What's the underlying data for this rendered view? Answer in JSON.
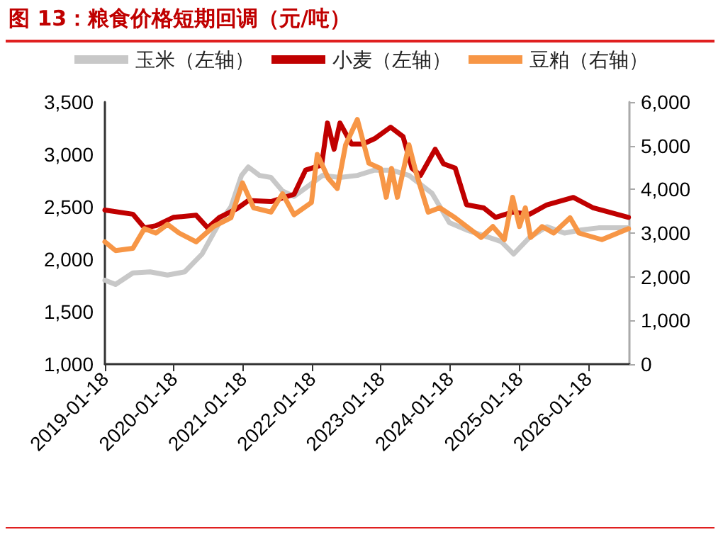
{
  "chart_data": {
    "type": "line",
    "title": "图 13：粮食价格短期回调（元/吨）",
    "xlim": [
      "2019-01-18",
      "2026-08-25"
    ],
    "xticks": [
      "2019-01-18",
      "2020-01-18",
      "2021-01-18",
      "2022-01-18",
      "2023-01-18",
      "2024-01-18",
      "2025-01-18",
      "2026-01-18"
    ],
    "ylim": [
      1000,
      3500
    ],
    "yticks": [
      {
        "value": 1000,
        "label": "1,000"
      },
      {
        "value": 1500,
        "label": "1,500"
      },
      {
        "value": 2000,
        "label": "2,000"
      },
      {
        "value": 2500,
        "label": "2,500"
      },
      {
        "value": 3000,
        "label": "3,000"
      },
      {
        "value": 3500,
        "label": "3,500"
      }
    ],
    "y2lim": [
      0,
      6000
    ],
    "y2ticks": [
      0,
      {
        "value": 1000,
        "label": "1,000"
      },
      {
        "value": 2000,
        "label": "2,000"
      },
      {
        "value": 3000,
        "label": "3,000"
      },
      {
        "value": 4000,
        "label": "4,000"
      },
      {
        "value": 5000,
        "label": "5,000"
      },
      {
        "value": 6000,
        "label": "6,000"
      }
    ],
    "grid": false,
    "legend": "top",
    "marker": "none",
    "line_style": "solid",
    "series": [
      {
        "name": "玉米（左轴）",
        "color": "#c8c8c8",
        "x": [
          "2019-01-18",
          "2019-03-15",
          "2019-06-15",
          "2019-09-15",
          "2019-12-15",
          "2020-03-15",
          "2020-06-15",
          "2020-09-15",
          "2020-11-15",
          "2021-01-10",
          "2021-02-15",
          "2021-04-15",
          "2021-06-15",
          "2021-08-15",
          "2021-10-15",
          "2021-12-15",
          "2022-03-15",
          "2022-06-15",
          "2022-09-15",
          "2022-12-15",
          "2023-03-15",
          "2023-06-15",
          "2023-10-15",
          "2024-01-15",
          "2024-04-15",
          "2024-10-15",
          "2024-12-20",
          "2025-03-15",
          "2025-06-15",
          "2025-09-15",
          "2025-12-15",
          "2026-03-15",
          "2026-08-20"
        ],
        "values": [
          1800,
          1760,
          1870,
          1880,
          1850,
          1880,
          2050,
          2350,
          2500,
          2800,
          2880,
          2800,
          2780,
          2650,
          2600,
          2680,
          2800,
          2780,
          2800,
          2850,
          2850,
          2800,
          2630,
          2350,
          2280,
          2170,
          2050,
          2210,
          2310,
          2250,
          2280,
          2300,
          2300
        ]
      },
      {
        "name": "小麦（左轴）",
        "color": "#c00000",
        "x": [
          "2019-01-18",
          "2019-06-15",
          "2019-08-15",
          "2019-10-15",
          "2020-01-15",
          "2020-05-15",
          "2020-07-15",
          "2020-09-15",
          "2020-12-15",
          "2021-02-15",
          "2021-06-15",
          "2021-10-15",
          "2021-12-15",
          "2022-03-10",
          "2022-04-10",
          "2022-05-15",
          "2022-06-15",
          "2022-08-15",
          "2022-10-15",
          "2022-12-15",
          "2023-03-10",
          "2023-05-15",
          "2023-07-01",
          "2023-08-15",
          "2023-11-01",
          "2023-12-15",
          "2024-02-15",
          "2024-04-15",
          "2024-07-15",
          "2024-09-15",
          "2024-12-15",
          "2025-03-15",
          "2025-06-15",
          "2025-11-01",
          "2026-02-15",
          "2026-08-20"
        ],
        "values": [
          2470,
          2430,
          2300,
          2320,
          2400,
          2420,
          2300,
          2400,
          2480,
          2560,
          2550,
          2620,
          2850,
          2900,
          3300,
          3050,
          3300,
          3100,
          3100,
          3150,
          3260,
          3170,
          2870,
          2800,
          3050,
          2910,
          2870,
          2520,
          2490,
          2400,
          2450,
          2430,
          2520,
          2590,
          2490,
          2400
        ]
      },
      {
        "name": "豆粕（右轴）",
        "color": "#f79646",
        "axis": "y2",
        "x": [
          "2019-01-18",
          "2019-03-15",
          "2019-06-15",
          "2019-08-15",
          "2019-10-15",
          "2019-12-15",
          "2020-02-15",
          "2020-05-15",
          "2020-08-15",
          "2020-11-15",
          "2021-01-15",
          "2021-03-15",
          "2021-06-15",
          "2021-08-15",
          "2021-10-15",
          "2022-01-15",
          "2022-02-15",
          "2022-04-15",
          "2022-06-01",
          "2022-07-15",
          "2022-09-15",
          "2022-11-15",
          "2023-01-15",
          "2023-02-15",
          "2023-03-15",
          "2023-04-15",
          "2023-06-15",
          "2023-07-25",
          "2023-09-25",
          "2023-11-25",
          "2024-02-15",
          "2024-07-01",
          "2024-09-01",
          "2024-11-01",
          "2024-12-15",
          "2025-01-20",
          "2025-02-20",
          "2025-03-20",
          "2025-05-20",
          "2025-07-20",
          "2025-10-15",
          "2025-12-01",
          "2026-04-01",
          "2026-08-20"
        ],
        "values": [
          2800,
          2600,
          2650,
          3100,
          3000,
          3200,
          3000,
          2800,
          3150,
          3350,
          4150,
          3580,
          3480,
          3900,
          3420,
          3700,
          4800,
          4250,
          4020,
          5020,
          5600,
          4600,
          4480,
          3820,
          4480,
          3820,
          5020,
          4350,
          3480,
          3580,
          3350,
          2900,
          3150,
          2850,
          3820,
          3150,
          3580,
          2900,
          3150,
          3000,
          3350,
          3000,
          2850,
          3100
        ]
      }
    ]
  }
}
